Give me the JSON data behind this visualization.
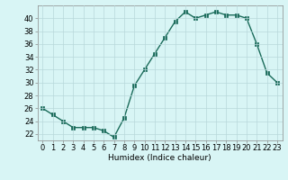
{
  "x": [
    0,
    1,
    2,
    3,
    4,
    5,
    6,
    7,
    8,
    9,
    10,
    11,
    12,
    13,
    14,
    15,
    16,
    17,
    18,
    19,
    20,
    21,
    22,
    23
  ],
  "y": [
    26,
    25,
    24,
    23,
    23,
    23,
    22.5,
    21.5,
    24.5,
    29.5,
    32,
    34.5,
    37,
    39.5,
    41,
    40,
    40.5,
    41,
    40.5,
    40.5,
    40,
    36,
    31.5,
    30
  ],
  "line_color": "#1a6b5a",
  "marker_color": "#1a6b5a",
  "bg_color": "#d8f5f5",
  "grid_color": "#b8d8da",
  "xlabel": "Humidex (Indice chaleur)",
  "ylim": [
    21,
    42
  ],
  "xlim": [
    -0.5,
    23.5
  ],
  "yticks": [
    22,
    24,
    26,
    28,
    30,
    32,
    34,
    36,
    38,
    40
  ],
  "xtick_labels": [
    "0",
    "1",
    "2",
    "3",
    "4",
    "5",
    "6",
    "7",
    "8",
    "9",
    "10",
    "11",
    "12",
    "13",
    "14",
    "15",
    "16",
    "17",
    "18",
    "19",
    "20",
    "21",
    "22",
    "23"
  ],
  "xlabel_fontsize": 6.5,
  "tick_fontsize": 6,
  "line_width": 1.0,
  "marker_size": 2.5
}
